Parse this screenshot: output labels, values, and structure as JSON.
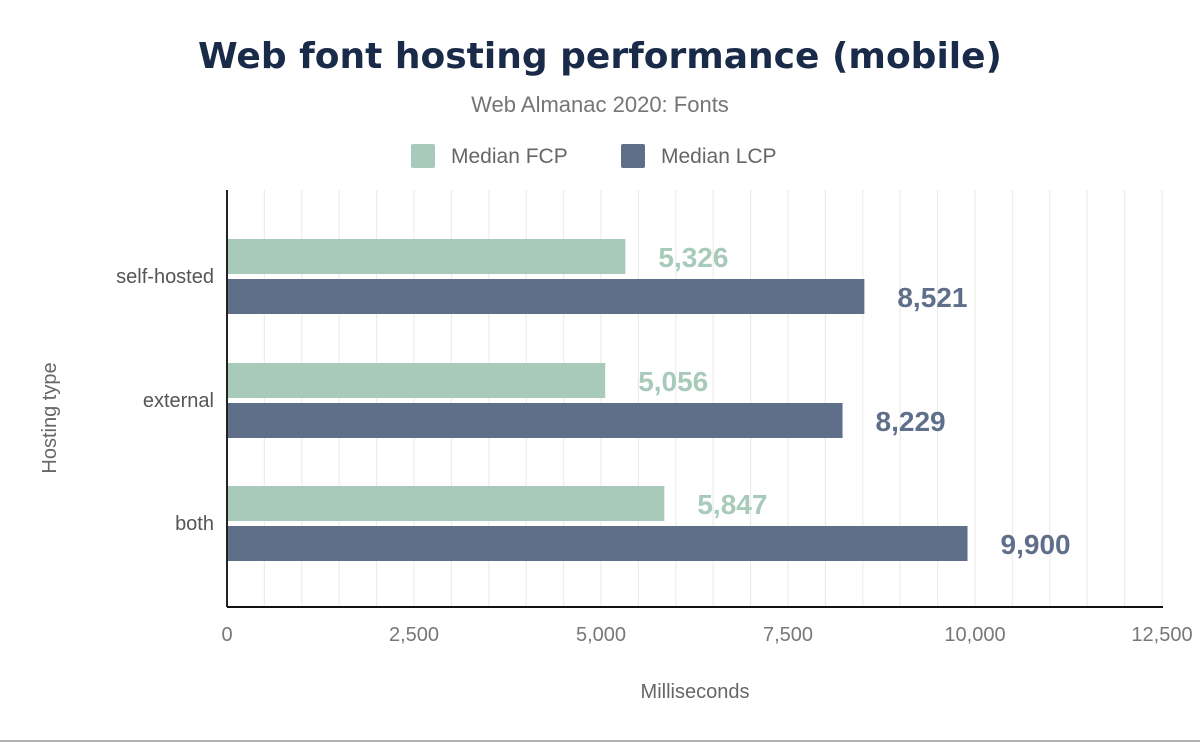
{
  "chart_data": {
    "type": "bar",
    "orientation": "horizontal",
    "title": "Web font hosting performance (mobile)",
    "subtitle": "Web Almanac 2020: Fonts",
    "xlabel": "Milliseconds",
    "ylabel": "Hosting type",
    "categories": [
      "self-hosted",
      "external",
      "both"
    ],
    "series": [
      {
        "name": "Median FCP",
        "color": "#a8cabb",
        "label_color": "#a8cabb",
        "values": [
          5326,
          5056,
          5847
        ],
        "labels": [
          "5,326",
          "5,056",
          "5,847"
        ]
      },
      {
        "name": "Median LCP",
        "color": "#5f6f8a",
        "label_color": "#5f6f8a",
        "values": [
          8521,
          8229,
          9900
        ],
        "labels": [
          "8,521",
          "8,229",
          "9,900"
        ]
      }
    ],
    "xlim": [
      0,
      12500
    ],
    "xticks": [
      0,
      2500,
      5000,
      7500,
      10000,
      12500
    ],
    "xtick_labels": [
      "0",
      "2,500",
      "5,000",
      "7,500",
      "10,000",
      "12,500"
    ],
    "grid": true,
    "legend": "top-center"
  }
}
